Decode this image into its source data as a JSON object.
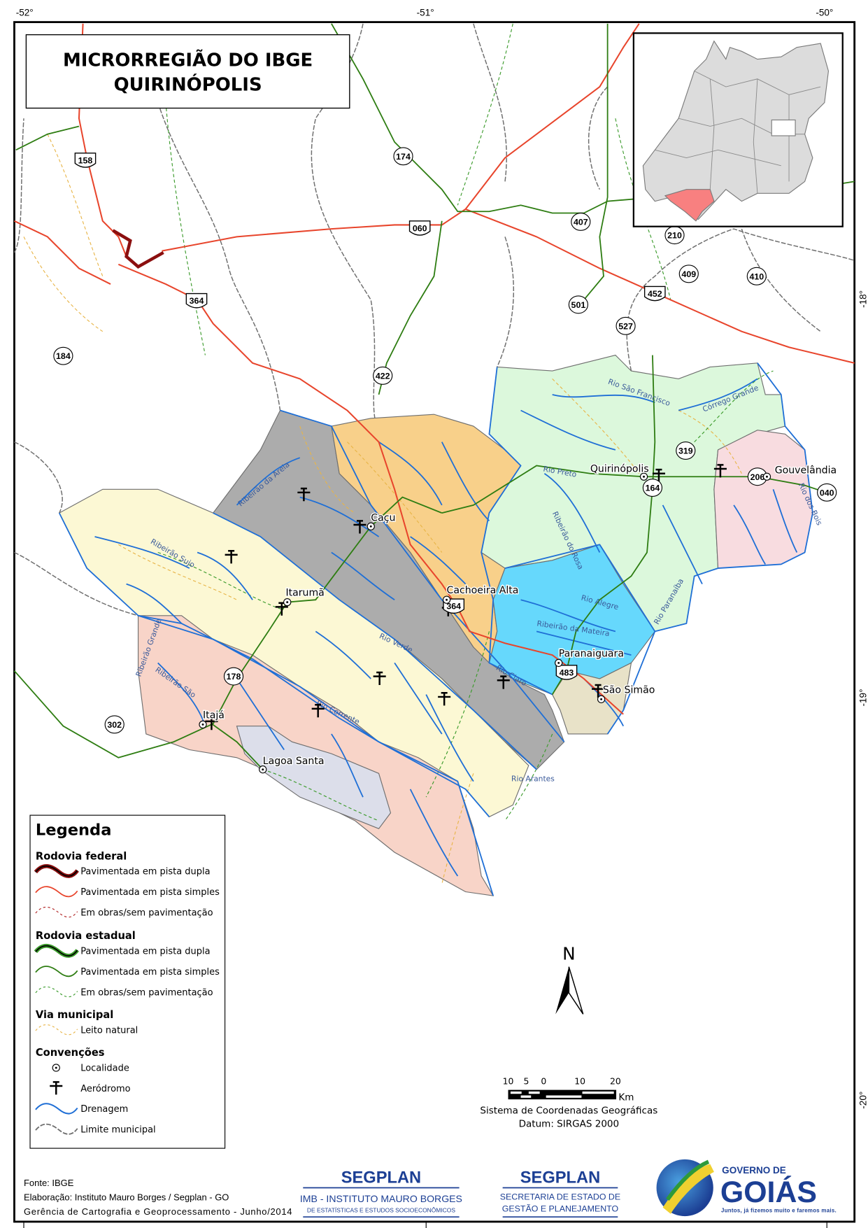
{
  "title": {
    "line1": "MICRORREGIÃO DO IBGE",
    "line2": "QUIRINÓPOLIS"
  },
  "graticule": {
    "longitudes": [
      "-52°",
      "-51°",
      "-50°"
    ],
    "latitudes": [
      "-18°",
      "-19°",
      "-20°"
    ]
  },
  "localities": [
    "Quirinópolis",
    "Gouvelândia",
    "Caçu",
    "Itarumã",
    "Cachoeira Alta",
    "Paranaiguara",
    "São Simão",
    "Itajá",
    "Lagoa Santa"
  ],
  "road_shields": [
    "158",
    "174",
    "060",
    "407",
    "210",
    "409",
    "410",
    "452",
    "501",
    "527",
    "364",
    "184",
    "422",
    "319",
    "164",
    "206",
    "040",
    "178",
    "302",
    "364",
    "483"
  ],
  "rivers": [
    "Rio São Francisco",
    "Córrego Grande",
    "Rio Preto",
    "Ribeirão do Rosa",
    "Rio Alegre",
    "Rio Paranaíba",
    "Rio dos Bois",
    "Ribeirão da Areia",
    "Ribeirão Sujo",
    "Rio Verde",
    "Rio Claro",
    "Ribeirão da Mateira",
    "Ribeirão Grande",
    "Ribeirão São",
    "Rio Corrente",
    "Rio Arantes"
  ],
  "legend": {
    "title": "Legenda",
    "federal": {
      "heading": "Rodovia federal",
      "items": [
        "Pavimentada em pista dupla",
        "Pavimentada em pista simples",
        "Em obras/sem pavimentação"
      ]
    },
    "estadual": {
      "heading": "Rodovia estadual",
      "items": [
        "Pavimentada em pista dupla",
        "Pavimentada em pista simples",
        "Em obras/sem pavimentação"
      ]
    },
    "municipal": {
      "heading": "Via municipal",
      "items": [
        "Leito natural"
      ]
    },
    "convencoes": {
      "heading": "Convenções",
      "items": [
        "Localidade",
        "Aeródromo",
        "Drenagem",
        "Limite municipal"
      ]
    }
  },
  "north_arrow": "N",
  "scale": {
    "ticks": [
      "10",
      "5",
      "0",
      "10",
      "20"
    ],
    "unit": "Km",
    "crs": "Sistema de Coordenadas Geográficas",
    "datum": "Datum: SIRGAS 2000"
  },
  "footer": {
    "source": "Fonte: IBGE",
    "elaboration": "Elaboração: Instituto Mauro Borges / Segplan - GO",
    "management": "Gerência de Cartografia e Geoprocessamento - Junho/2014"
  },
  "logos": {
    "imb": {
      "top": "SEGPLAN",
      "line1": "IMB - INSTITUTO MAURO BORGES",
      "line2": "DE ESTATÍSTICAS E ESTUDOS SOCIOECONÔMICOS"
    },
    "segplan": {
      "top": "SEGPLAN",
      "line1": "SECRETARIA DE ESTADO DE",
      "line2": "GESTÃO E PLANEJAMENTO"
    },
    "goias": {
      "line1": "GOVERNO DE",
      "line2": "GOIÁS",
      "slogan": "Juntos, já fizemos muito e faremos mais."
    }
  },
  "colors": {
    "federal_road": "#e8452c",
    "federal_double": "#8b0f0f",
    "state_road": "#2e7d12",
    "drainage": "#1f6fd6",
    "boundary": "#6e6e6e",
    "municipal_road": "#e8b548",
    "region_gray": "#acacac",
    "region_orange": "#f8d08a",
    "region_green": "#dcf8dc",
    "region_pink": "#f8dce0",
    "region_blue": "#66d8fc",
    "region_tan": "#e8e2c8",
    "region_yellow": "#fcf8d4",
    "region_salmon": "#f8d4c8",
    "region_lavender": "#dcdeea",
    "inset_state": "#dcdcdc",
    "inset_highlight": "#f88080",
    "logo_blue": "#1c3f94"
  }
}
